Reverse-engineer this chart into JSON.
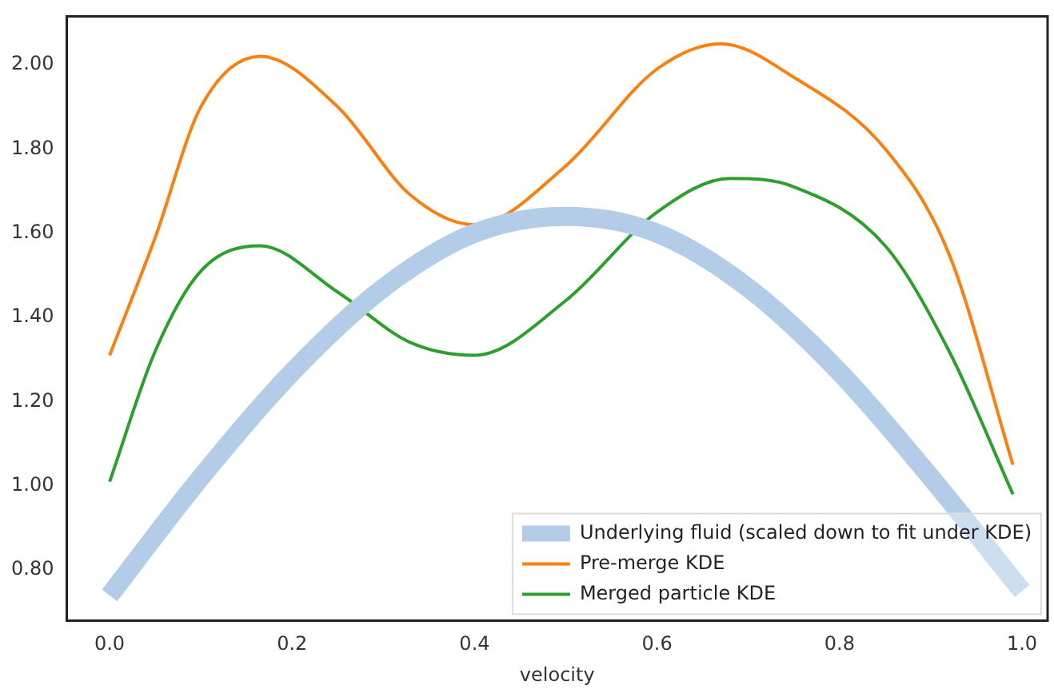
{
  "chart_data": {
    "type": "line",
    "xlabel": "velocity",
    "xlim": [
      -0.047,
      1.028
    ],
    "xticks": [
      {
        "value": 0,
        "label": "0.0"
      },
      {
        "value": 0.2,
        "label": "0.2"
      },
      {
        "value": 0.4,
        "label": "0.4"
      },
      {
        "value": 0.6,
        "label": "0.6"
      },
      {
        "value": 0.8,
        "label": "0.8"
      },
      {
        "value": 1,
        "label": "1.0"
      }
    ],
    "ylim": [
      0.68,
      2.115
    ],
    "yticks": [
      {
        "value": 0.8,
        "label": "0.80"
      },
      {
        "value": 1,
        "label": "1.00"
      },
      {
        "value": 1.2,
        "label": "1.20"
      },
      {
        "value": 1.4,
        "label": "1.40"
      },
      {
        "value": 1.6,
        "label": "1.60"
      },
      {
        "value": 1.8,
        "label": "1.80"
      },
      {
        "value": 2,
        "label": "2.00"
      }
    ],
    "grid": false,
    "legend": "bottom right",
    "marker": "none",
    "series": [
      {
        "name": "Underlying fluid (scaled down to fit under KDE)",
        "color": "#b3cde8",
        "x": [
          0,
          0.1,
          0.2,
          0.3,
          0.4,
          0.5,
          0.6,
          0.7,
          0.8,
          0.9,
          1.0
        ],
        "values": [
          0.74,
          1.02,
          1.27,
          1.47,
          1.6,
          1.64,
          1.6,
          1.47,
          1.27,
          1.02,
          0.75
        ]
      },
      {
        "name": "Pre-merge KDE",
        "color": "#ff7f0e",
        "x": [
          0,
          0.05,
          0.1,
          0.165,
          0.25,
          0.33,
          0.4,
          0.5,
          0.6,
          0.67,
          0.75,
          0.85,
          0.92,
          0.99
        ],
        "values": [
          1.31,
          1.59,
          1.9,
          2.02,
          1.9,
          1.69,
          1.62,
          1.76,
          1.99,
          2.05,
          1.97,
          1.8,
          1.55,
          1.05
        ]
      },
      {
        "name": "Merged particle KDE",
        "color": "#2ca02c",
        "x": [
          0,
          0.05,
          0.1,
          0.165,
          0.25,
          0.33,
          0.4,
          0.5,
          0.6,
          0.68,
          0.75,
          0.85,
          0.92,
          0.99
        ],
        "values": [
          1.01,
          1.32,
          1.51,
          1.57,
          1.46,
          1.34,
          1.31,
          1.44,
          1.65,
          1.73,
          1.71,
          1.57,
          1.32,
          0.98
        ]
      }
    ]
  }
}
